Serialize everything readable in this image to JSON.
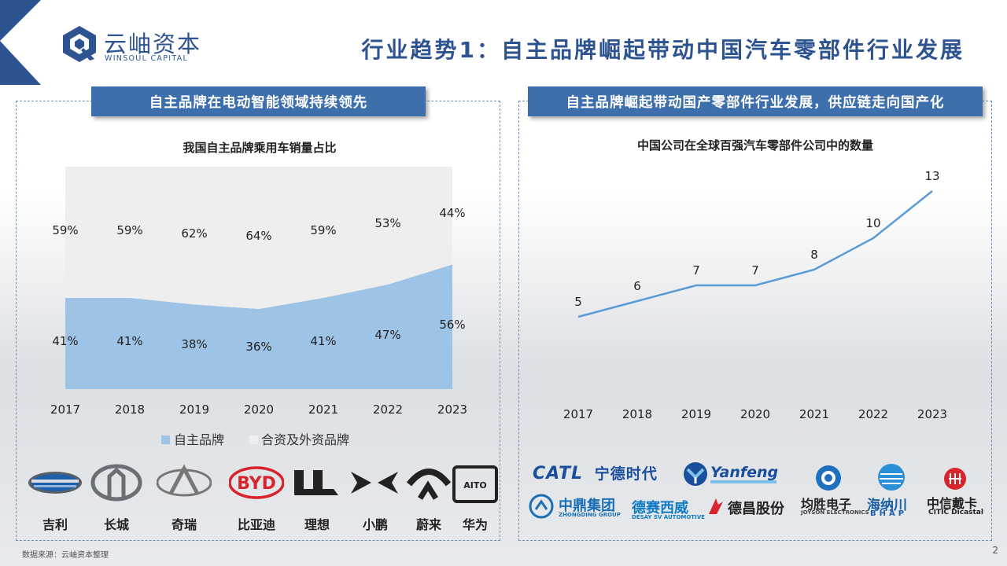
{
  "header": {
    "logo_cn": "云岫资本",
    "logo_en": "WINSOUL CAPITAL",
    "title": "行业趋势1：自主品牌崛起带动中国汽车零部件行业发展"
  },
  "left_panel": {
    "banner": "自主品牌在电动智能领域持续领先",
    "chart_title": "我国自主品牌乘用车销量占比"
  },
  "right_panel": {
    "banner": "自主品牌崛起带动国产零部件行业发展，供应链走向国产化",
    "chart_title": "中国公司在全球百强汽车零部件公司中的数量"
  },
  "chart_data": [
    {
      "type": "area",
      "title": "我国自主品牌乘用车销量占比",
      "stacked": true,
      "percent": true,
      "categories": [
        "2017",
        "2018",
        "2019",
        "2020",
        "2021",
        "2022",
        "2023"
      ],
      "series": [
        {
          "name": "自主品牌",
          "values": [
            41,
            41,
            38,
            36,
            41,
            47,
            56
          ],
          "labels": [
            "41%",
            "41%",
            "38%",
            "36%",
            "41%",
            "47%",
            "56%"
          ],
          "color": "#9dc3e6"
        },
        {
          "name": "合资及外资品牌",
          "values": [
            59,
            59,
            62,
            64,
            59,
            53,
            44
          ],
          "labels": [
            "59%",
            "59%",
            "62%",
            "64%",
            "59%",
            "53%",
            "44%"
          ],
          "color": "#eeeeee"
        }
      ],
      "ylim": [
        0,
        100
      ],
      "legend": "bottom",
      "grid": false
    },
    {
      "type": "line",
      "title": "中国公司在全球百强汽车零部件公司中的数量",
      "categories": [
        "2017",
        "2018",
        "2019",
        "2020",
        "2021",
        "2022",
        "2023"
      ],
      "values": [
        5,
        6,
        7,
        7,
        8,
        10,
        13
      ],
      "labels": [
        "5",
        "6",
        "7",
        "7",
        "8",
        "10",
        "13"
      ],
      "color": "#5b9bd5",
      "grid": false
    }
  ],
  "brands": [
    {
      "name": "吉利",
      "icon": "geely-logo"
    },
    {
      "name": "长城",
      "icon": "great-wall-logo"
    },
    {
      "name": "奇瑞",
      "icon": "chery-logo"
    },
    {
      "name": "比亚迪",
      "icon": "byd-logo",
      "logo_text": "BYD"
    },
    {
      "name": "理想",
      "icon": "li-auto-logo"
    },
    {
      "name": "小鹏",
      "icon": "xpeng-logo"
    },
    {
      "name": "蔚来",
      "icon": "nio-logo"
    },
    {
      "name": "华为",
      "icon": "aito-logo",
      "logo_text": "AITO"
    }
  ],
  "suppliers": {
    "catl": {
      "en": "CATL",
      "cn": "宁德时代"
    },
    "yanfeng": {
      "en": "Yanfeng"
    },
    "zhongding": {
      "cn": "中鼎集团",
      "en": "ZHONGDING GROUP"
    },
    "desay": {
      "cn": "德赛西威",
      "en": "DESAY SV AUTOMOTIVE"
    },
    "dechang": {
      "cn": "德昌股份"
    },
    "joyson": {
      "cn": "均胜电子",
      "en": "JOYSON ELECTRONICS"
    },
    "bhap": {
      "cn": "海纳川",
      "en": "BHAP"
    },
    "citic": {
      "cn": "中信戴卡",
      "en": "CITIC Dicastal"
    }
  },
  "footer": {
    "source": "数据来源：云岫资本整理",
    "page": "2"
  }
}
